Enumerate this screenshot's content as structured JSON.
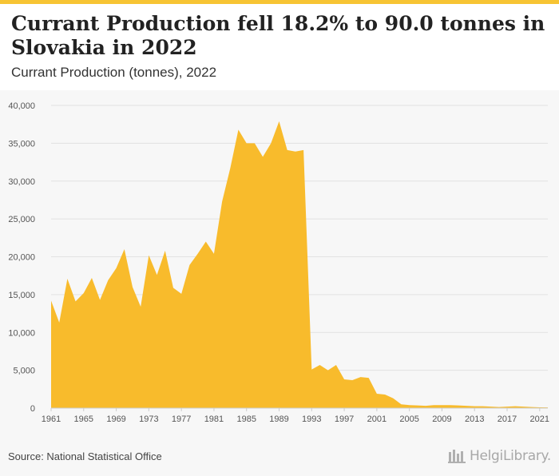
{
  "header": {
    "title": "Currant Production fell 18.2% to 90.0 tonnes in Slovakia in 2022",
    "subtitle": "Currant Production (tonnes), 2022"
  },
  "footer": {
    "source": "Source: National Statistical Office",
    "brand": "HelgiLibrary."
  },
  "colors": {
    "accent": "#f7c433",
    "area_fill": "#f8bb2c",
    "grid": "#e2e2e2"
  },
  "chart_data": {
    "type": "area",
    "xlim": [
      1961,
      2022
    ],
    "ylim": [
      0,
      40000
    ],
    "y_ticks": [
      0,
      5000,
      10000,
      15000,
      20000,
      25000,
      30000,
      35000,
      40000
    ],
    "y_tick_labels": [
      "0",
      "5,000",
      "10,000",
      "15,000",
      "20,000",
      "25,000",
      "30,000",
      "35,000",
      "40,000"
    ],
    "x_ticks": [
      1961,
      1965,
      1969,
      1973,
      1977,
      1981,
      1985,
      1989,
      1993,
      1997,
      2001,
      2005,
      2009,
      2013,
      2017,
      2021
    ],
    "x_tick_labels": [
      "1961",
      "1965",
      "1969",
      "1973",
      "1977",
      "1981",
      "1985",
      "1989",
      "1993",
      "1997",
      "2001",
      "2005",
      "2009",
      "2013",
      "2017",
      "2021"
    ],
    "grid": true,
    "series": [
      {
        "x": [
          1961,
          1962,
          1963,
          1964,
          1965,
          1966,
          1967,
          1968,
          1969,
          1970,
          1971,
          1972,
          1973,
          1974,
          1975,
          1976,
          1977,
          1978,
          1979,
          1980,
          1981,
          1982,
          1983,
          1984,
          1985,
          1986,
          1987,
          1988,
          1989,
          1990,
          1991,
          1992,
          1993,
          1994,
          1995,
          1996,
          1997,
          1998,
          1999,
          2000,
          2001,
          2002,
          2003,
          2004,
          2005,
          2006,
          2007,
          2008,
          2009,
          2010,
          2011,
          2012,
          2013,
          2014,
          2015,
          2016,
          2017,
          2018,
          2019,
          2020,
          2021,
          2022
        ],
        "values": [
          14200,
          11300,
          17100,
          14100,
          15200,
          17200,
          14300,
          16900,
          18500,
          21000,
          16000,
          13400,
          20200,
          17600,
          20800,
          15900,
          15100,
          18900,
          20400,
          22000,
          20400,
          27300,
          31700,
          36800,
          35000,
          35000,
          33200,
          35000,
          37900,
          34100,
          33900,
          34100,
          5100,
          5700,
          5000,
          5700,
          3800,
          3700,
          4100,
          4000,
          1900,
          1800,
          1300,
          500,
          400,
          350,
          300,
          400,
          400,
          400,
          350,
          300,
          250,
          250,
          200,
          150,
          200,
          250,
          200,
          150,
          110,
          90
        ]
      }
    ]
  }
}
